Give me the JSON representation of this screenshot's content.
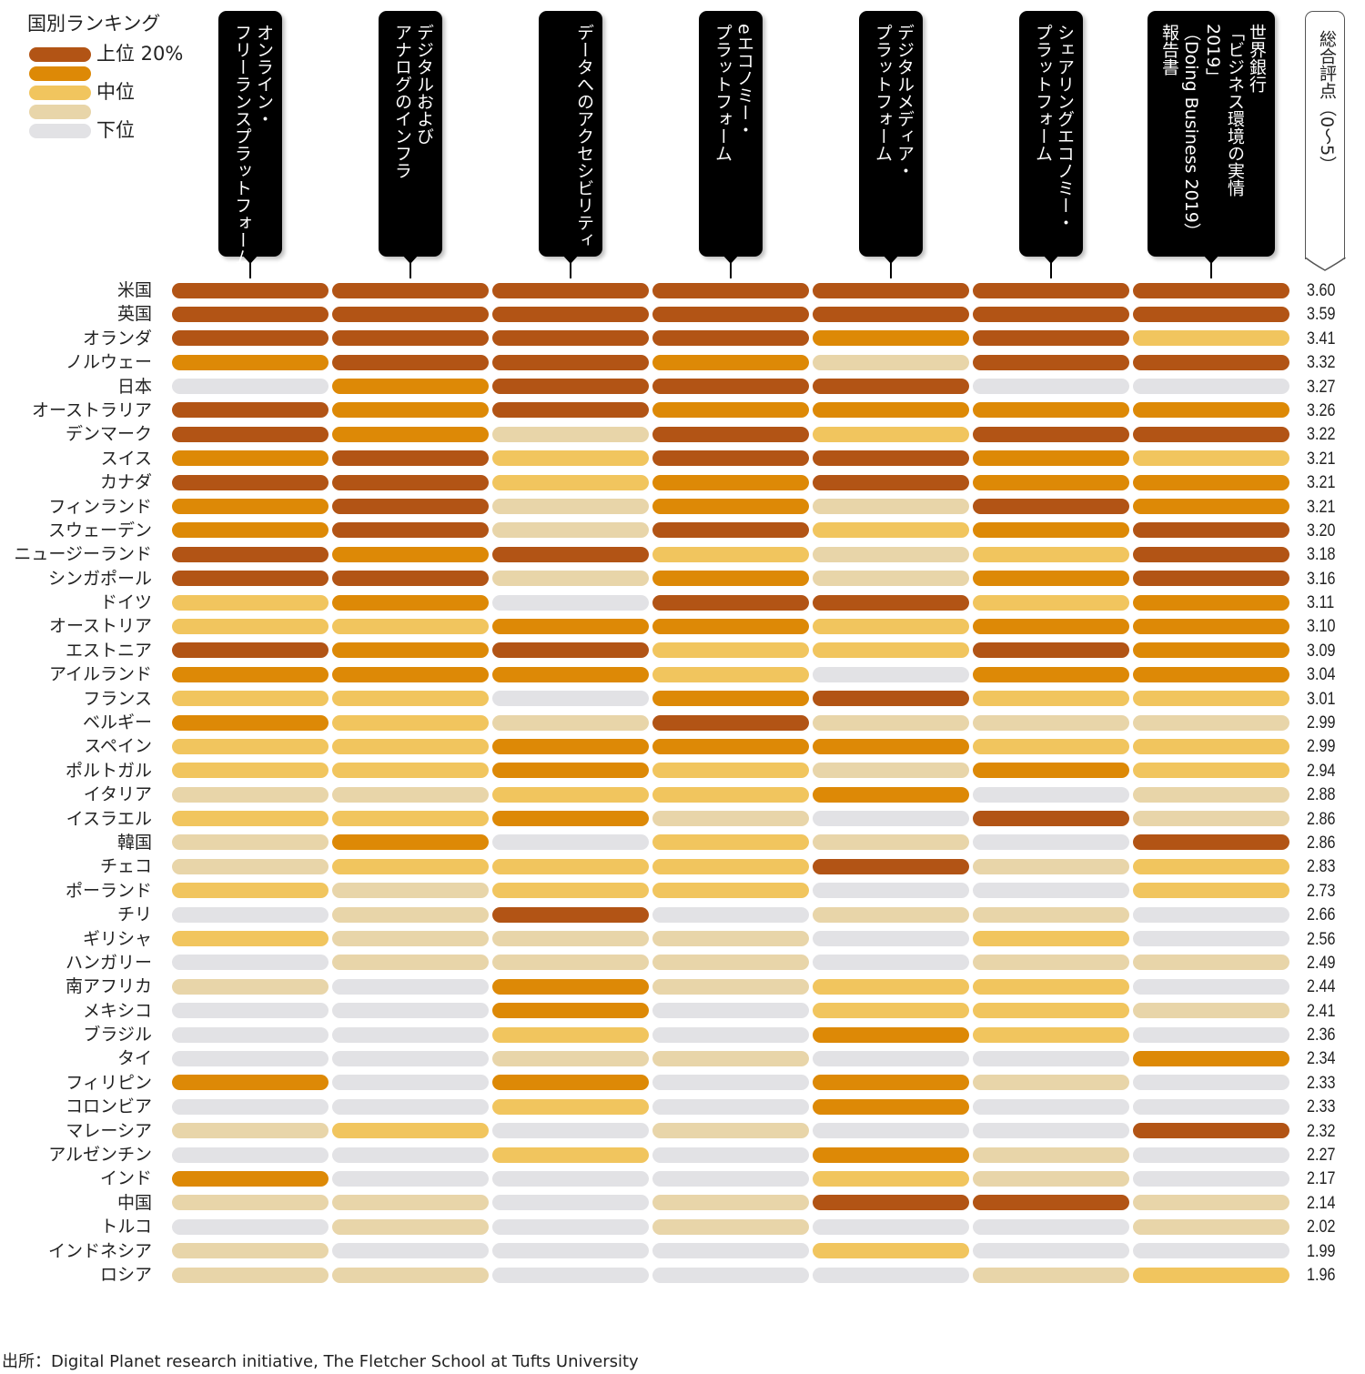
{
  "chart_data": {
    "type": "heatmap",
    "legend": {
      "title": "国別ランキング",
      "levels": [
        {
          "value": 5,
          "label": "上位 20%",
          "color": "#b25415"
        },
        {
          "value": 4,
          "label": "",
          "color": "#dd8906"
        },
        {
          "value": 3,
          "label": "中位",
          "color": "#f1c55e"
        },
        {
          "value": 2,
          "label": "",
          "color": "#e8d5a9"
        },
        {
          "value": 1,
          "label": "下位",
          "color": "#e2e2e5"
        }
      ]
    },
    "columns": [
      {
        "lines": [
          "オンライン・",
          "フリーランスプラットフォーム"
        ]
      },
      {
        "lines": [
          "デジタルおよび",
          "アナログのインフラ"
        ]
      },
      {
        "lines": [
          "データへのアクセシビリティ"
        ]
      },
      {
        "lines": [
          "eエコノミー・",
          "プラットフォーム"
        ]
      },
      {
        "lines": [
          "デジタルメディア・",
          "プラットフォーム"
        ]
      },
      {
        "lines": [
          "シェアリングエコノミー・",
          "プラットフォーム"
        ]
      },
      {
        "lines": [
          "世界銀行",
          "「ビジネス環境の実情",
          "2019」",
          "（Doing Business 2019）",
          "報告書"
        ]
      }
    ],
    "score_header": "総合評点（0〜5）",
    "rows": [
      {
        "country": "米国",
        "levels": [
          5,
          5,
          5,
          5,
          5,
          5,
          5
        ],
        "score": "3.60"
      },
      {
        "country": "英国",
        "levels": [
          5,
          5,
          5,
          5,
          5,
          5,
          5
        ],
        "score": "3.59"
      },
      {
        "country": "オランダ",
        "levels": [
          5,
          5,
          5,
          5,
          4,
          5,
          3
        ],
        "score": "3.41"
      },
      {
        "country": "ノルウェー",
        "levels": [
          4,
          5,
          5,
          4,
          2,
          5,
          5
        ],
        "score": "3.32"
      },
      {
        "country": "日本",
        "levels": [
          1,
          4,
          5,
          5,
          5,
          1,
          1
        ],
        "score": "3.27"
      },
      {
        "country": "オーストラリア",
        "levels": [
          5,
          4,
          5,
          4,
          4,
          4,
          4
        ],
        "score": "3.26"
      },
      {
        "country": "デンマーク",
        "levels": [
          5,
          4,
          2,
          5,
          3,
          5,
          5
        ],
        "score": "3.22"
      },
      {
        "country": "スイス",
        "levels": [
          4,
          5,
          3,
          5,
          5,
          4,
          3
        ],
        "score": "3.21"
      },
      {
        "country": "カナダ",
        "levels": [
          5,
          5,
          3,
          4,
          5,
          4,
          4
        ],
        "score": "3.21"
      },
      {
        "country": "フィンランド",
        "levels": [
          4,
          5,
          2,
          4,
          2,
          5,
          4
        ],
        "score": "3.21"
      },
      {
        "country": "スウェーデン",
        "levels": [
          4,
          5,
          2,
          5,
          3,
          4,
          5
        ],
        "score": "3.20"
      },
      {
        "country": "ニュージーランド",
        "levels": [
          5,
          4,
          5,
          3,
          2,
          3,
          5
        ],
        "score": "3.18"
      },
      {
        "country": "シンガポール",
        "levels": [
          5,
          5,
          2,
          4,
          2,
          4,
          5
        ],
        "score": "3.16"
      },
      {
        "country": "ドイツ",
        "levels": [
          3,
          4,
          1,
          5,
          5,
          3,
          4
        ],
        "score": "3.11"
      },
      {
        "country": "オーストリア",
        "levels": [
          3,
          3,
          4,
          4,
          3,
          4,
          4
        ],
        "score": "3.10"
      },
      {
        "country": "エストニア",
        "levels": [
          5,
          4,
          5,
          3,
          3,
          5,
          4
        ],
        "score": "3.09"
      },
      {
        "country": "アイルランド",
        "levels": [
          4,
          4,
          4,
          3,
          1,
          4,
          4
        ],
        "score": "3.04"
      },
      {
        "country": "フランス",
        "levels": [
          3,
          3,
          1,
          4,
          5,
          3,
          3
        ],
        "score": "3.01"
      },
      {
        "country": "ベルギー",
        "levels": [
          4,
          3,
          2,
          5,
          2,
          2,
          2
        ],
        "score": "2.99"
      },
      {
        "country": "スペイン",
        "levels": [
          3,
          3,
          4,
          4,
          4,
          3,
          3
        ],
        "score": "2.99"
      },
      {
        "country": "ポルトガル",
        "levels": [
          3,
          3,
          4,
          3,
          2,
          4,
          3
        ],
        "score": "2.94"
      },
      {
        "country": "イタリア",
        "levels": [
          2,
          2,
          3,
          3,
          4,
          1,
          2
        ],
        "score": "2.88"
      },
      {
        "country": "イスラエル",
        "levels": [
          3,
          3,
          4,
          2,
          1,
          5,
          2
        ],
        "score": "2.86"
      },
      {
        "country": "韓国",
        "levels": [
          2,
          4,
          1,
          3,
          2,
          1,
          5
        ],
        "score": "2.86"
      },
      {
        "country": "チェコ",
        "levels": [
          2,
          3,
          3,
          3,
          5,
          2,
          3
        ],
        "score": "2.83"
      },
      {
        "country": "ポーランド",
        "levels": [
          3,
          2,
          3,
          3,
          1,
          1,
          3
        ],
        "score": "2.73"
      },
      {
        "country": "チリ",
        "levels": [
          1,
          2,
          5,
          1,
          2,
          2,
          1
        ],
        "score": "2.66"
      },
      {
        "country": "ギリシャ",
        "levels": [
          3,
          2,
          2,
          2,
          1,
          3,
          1
        ],
        "score": "2.56"
      },
      {
        "country": "ハンガリー",
        "levels": [
          1,
          2,
          2,
          2,
          1,
          2,
          2
        ],
        "score": "2.49"
      },
      {
        "country": "南アフリカ",
        "levels": [
          2,
          1,
          4,
          2,
          3,
          3,
          1
        ],
        "score": "2.44"
      },
      {
        "country": "メキシコ",
        "levels": [
          1,
          1,
          4,
          1,
          3,
          3,
          2
        ],
        "score": "2.41"
      },
      {
        "country": "ブラジル",
        "levels": [
          1,
          1,
          3,
          1,
          4,
          3,
          1
        ],
        "score": "2.36"
      },
      {
        "country": "タイ",
        "levels": [
          1,
          1,
          2,
          2,
          1,
          1,
          4
        ],
        "score": "2.34"
      },
      {
        "country": "フィリピン",
        "levels": [
          4,
          1,
          4,
          1,
          4,
          2,
          1
        ],
        "score": "2.33"
      },
      {
        "country": "コロンビア",
        "levels": [
          1,
          1,
          3,
          1,
          4,
          1,
          1
        ],
        "score": "2.33"
      },
      {
        "country": "マレーシア",
        "levels": [
          2,
          3,
          1,
          2,
          1,
          1,
          5
        ],
        "score": "2.32"
      },
      {
        "country": "アルゼンチン",
        "levels": [
          1,
          1,
          3,
          1,
          4,
          2,
          1
        ],
        "score": "2.27"
      },
      {
        "country": "インド",
        "levels": [
          4,
          1,
          1,
          1,
          3,
          2,
          1
        ],
        "score": "2.17"
      },
      {
        "country": "中国",
        "levels": [
          2,
          2,
          1,
          2,
          5,
          5,
          2
        ],
        "score": "2.14"
      },
      {
        "country": "トルコ",
        "levels": [
          1,
          2,
          1,
          2,
          1,
          1,
          2
        ],
        "score": "2.02"
      },
      {
        "country": "インドネシア",
        "levels": [
          2,
          1,
          1,
          1,
          3,
          1,
          1
        ],
        "score": "1.99"
      },
      {
        "country": "ロシア",
        "levels": [
          2,
          2,
          1,
          1,
          1,
          2,
          3
        ],
        "score": "1.96"
      }
    ],
    "source": "出所：Digital Planet research initiative, The Fletcher School at Tufts University"
  }
}
